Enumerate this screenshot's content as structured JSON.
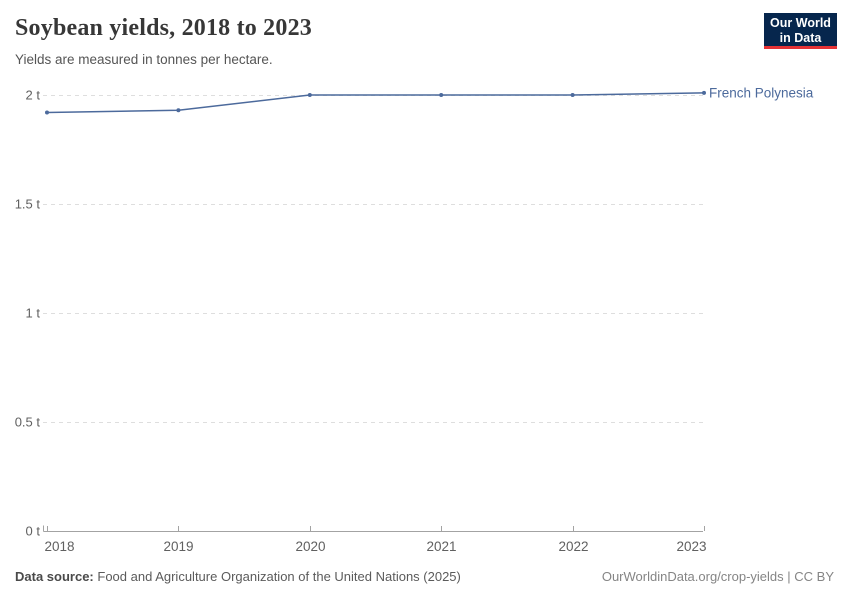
{
  "header": {
    "title": "Soybean yields, 2018 to 2023",
    "subtitle": "Yields are measured in tonnes per hectare.",
    "logo": {
      "line1": "Our World",
      "line2": "in Data",
      "bg_color": "#06264d",
      "accent_color": "#e63235"
    }
  },
  "chart_data": {
    "type": "line",
    "title": "Soybean yields, 2018 to 2023",
    "unit": "tonnes per hectare",
    "x": [
      2018,
      2019,
      2020,
      2021,
      2022,
      2023
    ],
    "xticks": [
      "2018",
      "2019",
      "2020",
      "2021",
      "2022",
      "2023"
    ],
    "series": [
      {
        "name": "French Polynesia",
        "color": "#4c6a9c",
        "values": [
          1.92,
          1.93,
          2.0,
          2.0,
          2.0,
          2.01
        ]
      }
    ],
    "ylim": [
      0,
      2
    ],
    "yticks": [
      {
        "value": 0,
        "label": "0 t"
      },
      {
        "value": 0.5,
        "label": "0.5 t"
      },
      {
        "value": 1,
        "label": "1 t"
      },
      {
        "value": 1.5,
        "label": "1.5 t"
      },
      {
        "value": 2,
        "label": "2 t"
      }
    ],
    "grid": "horizontal-dashed",
    "legend": "line-end-label"
  },
  "footer": {
    "source_label": "Data source:",
    "source_text": "Food and Agriculture Organization of the United Nations (2025)",
    "credit": "OurWorldinData.org/crop-yields | CC BY"
  },
  "colors": {
    "series_blue": "#4c6a9c",
    "gridline": "#dedede",
    "axis": "#a3a3a3",
    "tick_label": "#606060",
    "title_text": "#373737",
    "subtitle_text": "#555555",
    "footer_text": "#5b5b5b",
    "credit_text": "#858585"
  }
}
